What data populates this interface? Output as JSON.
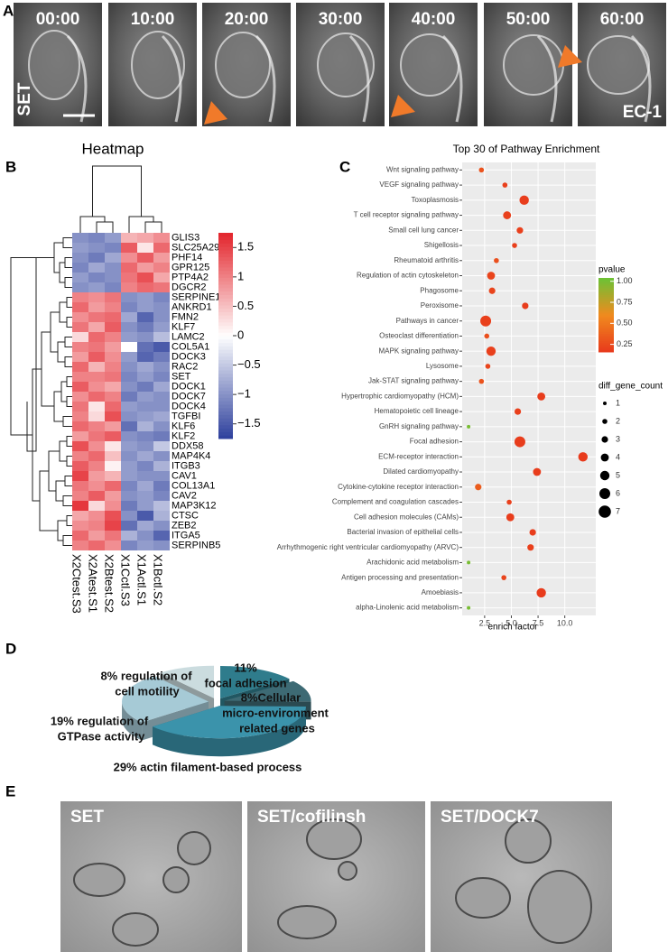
{
  "panel_a": {
    "label": "A",
    "frames": [
      "00:00",
      "10:00",
      "20:00",
      "30:00",
      "40:00",
      "50:00",
      "60:00"
    ],
    "cell_line_left": "SET",
    "cell_line_right": "EC-1"
  },
  "panel_b": {
    "label": "B",
    "title": "Heatmap",
    "samples": [
      "X2Ctest.S3",
      "X2Atest.S1",
      "X2Btest.S2",
      "X1Cctl.S3",
      "X1Actl.S1",
      "X1Bctl.S2"
    ],
    "genes": [
      "GLIS3",
      "SLC25A29",
      "PHF14",
      "GPR125",
      "PTP4A2",
      "DGCR2",
      "SERPINE1",
      "ANKRD1",
      "FMN2",
      "KLF7",
      "LAMC2",
      "COL5A1",
      "DOCK3",
      "RAC2",
      "SET",
      "DOCK1",
      "DOCK7",
      "DOCK4",
      "TGFBI",
      "KLF6",
      "KLF2",
      "DDX58",
      "MAP4K4",
      "ITGB3",
      "CAV1",
      "COL13A1",
      "CAV2",
      "MAP3K12",
      "CTSC",
      "ZEB2",
      "ITGA5",
      "SERPINB5"
    ],
    "values": [
      [
        -1,
        -1.1,
        -0.9,
        0.6,
        0.7,
        0.9
      ],
      [
        -0.9,
        -1,
        -1.1,
        1.3,
        0.2,
        1.2
      ],
      [
        -1,
        -1.2,
        -0.8,
        0.9,
        1.3,
        0.8
      ],
      [
        -1.1,
        -0.8,
        -1,
        1.2,
        0.8,
        1
      ],
      [
        -0.9,
        -1.1,
        -1,
        1.1,
        1.4,
        0.7
      ],
      [
        -1,
        -0.9,
        -1.1,
        1,
        1.2,
        1.1
      ],
      [
        1,
        0.9,
        1.1,
        -1,
        -0.9,
        -1.1
      ],
      [
        1.2,
        0.8,
        1,
        -1.1,
        -0.9,
        -1
      ],
      [
        0.9,
        1.1,
        1.2,
        -0.8,
        -1.4,
        -1
      ],
      [
        1.1,
        0.7,
        1.3,
        -1,
        -1.2,
        -0.9
      ],
      [
        0.3,
        1.2,
        1,
        -0.9,
        -1,
        -0.6
      ],
      [
        1,
        1.1,
        0.8,
        0,
        -1.3,
        -1.5
      ],
      [
        0.8,
        1.3,
        0.9,
        -0.9,
        -1.4,
        -1.2
      ],
      [
        1.2,
        0.6,
        1,
        -1,
        -0.8,
        -1
      ],
      [
        1,
        1,
        1.1,
        -1.1,
        -0.9,
        -1.1
      ],
      [
        1.3,
        0.9,
        0.7,
        -1,
        -1.2,
        -0.8
      ],
      [
        0.9,
        1.2,
        1,
        -1.2,
        -0.9,
        -1
      ],
      [
        1.1,
        0.2,
        1.2,
        -0.9,
        -1,
        -1
      ],
      [
        1,
        0.3,
        1.4,
        -1,
        -0.9,
        -0.8
      ],
      [
        1.2,
        1,
        0.8,
        -1.3,
        -0.7,
        -1
      ],
      [
        0.8,
        1.1,
        1.3,
        -1,
        -1.1,
        -1.2
      ],
      [
        1.4,
        0.9,
        0.2,
        -0.9,
        -1,
        -0.5
      ],
      [
        1,
        1.2,
        0.5,
        -1,
        -0.8,
        -1
      ],
      [
        1.3,
        1,
        0.1,
        -0.9,
        -1.1,
        -0.7
      ],
      [
        1.5,
        0.8,
        0.6,
        -0.9,
        -1,
        -1
      ],
      [
        1.1,
        0.9,
        1.2,
        -1.1,
        -0.8,
        -1.2
      ],
      [
        1,
        1.3,
        0.8,
        -1,
        -0.9,
        -1.1
      ],
      [
        1.6,
        0.3,
        0.9,
        -1.2,
        -0.9,
        -0.6
      ],
      [
        0.7,
        0.9,
        1.4,
        -1,
        -1.5,
        -0.7
      ],
      [
        0.9,
        1,
        1.5,
        -1.3,
        -0.8,
        -1
      ],
      [
        1.2,
        0.8,
        1.1,
        -0.7,
        -1,
        -1.4
      ],
      [
        1,
        1.2,
        0.9,
        -1.1,
        -0.9,
        -1
      ]
    ],
    "scale_lim": [
      -1.75,
      1.75
    ],
    "scale_ticks": [
      1.5,
      1,
      0.5,
      0,
      {
        "value": -0.5,
        "label": "−0.5"
      },
      {
        "value": -1,
        "label": "−1"
      },
      {
        "value": -1.5,
        "label": "−1.5"
      }
    ],
    "colors": {
      "low": "#2c3f9c",
      "mid": "#ffffff",
      "high": "#e3242b"
    }
  },
  "panel_c": {
    "label": "C",
    "type": "scatter",
    "title": "Top 30 of Pathway Enrichment",
    "x_label": "enrich factor",
    "xlim": [
      0.4,
      12.9
    ],
    "xticks": [
      2.5,
      {
        "value": 5,
        "label": "5.0"
      },
      7.5,
      {
        "value": 10,
        "label": "10.0"
      }
    ],
    "grid": true,
    "pathways": [
      {
        "name": "Wnt signaling pathway",
        "enrich_factor": 2.2,
        "pvalue": 0.3,
        "gene_count": 2
      },
      {
        "name": "VEGF signaling pathway",
        "enrich_factor": 4.4,
        "pvalue": 0.2,
        "gene_count": 2
      },
      {
        "name": "Toxoplasmosis",
        "enrich_factor": 6.2,
        "pvalue": 0.18,
        "gene_count": 5
      },
      {
        "name": "T cell receptor signaling pathway",
        "enrich_factor": 4.6,
        "pvalue": 0.2,
        "gene_count": 4
      },
      {
        "name": "Small cell lung cancer",
        "enrich_factor": 5.8,
        "pvalue": 0.2,
        "gene_count": 3
      },
      {
        "name": "Shigellosis",
        "enrich_factor": 5.3,
        "pvalue": 0.2,
        "gene_count": 2
      },
      {
        "name": "Rheumatoid arthritis",
        "enrich_factor": 3.6,
        "pvalue": 0.28,
        "gene_count": 2
      },
      {
        "name": "Regulation of actin cytoskeleton",
        "enrich_factor": 3.1,
        "pvalue": 0.22,
        "gene_count": 4
      },
      {
        "name": "Phagosome",
        "enrich_factor": 3.2,
        "pvalue": 0.22,
        "gene_count": 3
      },
      {
        "name": "Peroxisome",
        "enrich_factor": 6.3,
        "pvalue": 0.18,
        "gene_count": 3
      },
      {
        "name": "Pathways in cancer",
        "enrich_factor": 2.6,
        "pvalue": 0.2,
        "gene_count": 6
      },
      {
        "name": "Osteoclast differentiation",
        "enrich_factor": 2.7,
        "pvalue": 0.28,
        "gene_count": 2
      },
      {
        "name": "MAPK signaling pathway",
        "enrich_factor": 3.1,
        "pvalue": 0.2,
        "gene_count": 5
      },
      {
        "name": "Lysosome",
        "enrich_factor": 2.8,
        "pvalue": 0.22,
        "gene_count": 2
      },
      {
        "name": "Jak-STAT signaling pathway",
        "enrich_factor": 2.2,
        "pvalue": 0.3,
        "gene_count": 2
      },
      {
        "name": "Hypertrophic cardiomyopathy (HCM)",
        "enrich_factor": 7.8,
        "pvalue": 0.18,
        "gene_count": 4
      },
      {
        "name": "Hematopoietic cell lineage",
        "enrich_factor": 5.6,
        "pvalue": 0.2,
        "gene_count": 3
      },
      {
        "name": "GnRH signaling pathway",
        "enrich_factor": 1.0,
        "pvalue": 1.0,
        "gene_count": 1
      },
      {
        "name": "Focal adhesion",
        "enrich_factor": 5.8,
        "pvalue": 0.18,
        "gene_count": 6
      },
      {
        "name": "ECM-receptor interaction",
        "enrich_factor": 11.7,
        "pvalue": 0.17,
        "gene_count": 5
      },
      {
        "name": "Dilated cardiomyopathy",
        "enrich_factor": 7.4,
        "pvalue": 0.18,
        "gene_count": 4
      },
      {
        "name": "Cytokine-cytokine receptor interaction",
        "enrich_factor": 1.9,
        "pvalue": 0.35,
        "gene_count": 3
      },
      {
        "name": "Complement and coagulation cascades",
        "enrich_factor": 4.8,
        "pvalue": 0.2,
        "gene_count": 2
      },
      {
        "name": "Cell adhesion molecules (CAMs)",
        "enrich_factor": 4.9,
        "pvalue": 0.18,
        "gene_count": 4
      },
      {
        "name": "Bacterial invasion of epithelial cells",
        "enrich_factor": 7.0,
        "pvalue": 0.18,
        "gene_count": 3
      },
      {
        "name": "Arrhythmogenic right ventricular cardiomyopathy (ARVC)",
        "enrich_factor": 6.8,
        "pvalue": 0.2,
        "gene_count": 3
      },
      {
        "name": "Arachidonic acid metabolism",
        "enrich_factor": 1.0,
        "pvalue": 1.0,
        "gene_count": 1
      },
      {
        "name": "Antigen processing and presentation",
        "enrich_factor": 4.3,
        "pvalue": 0.22,
        "gene_count": 2
      },
      {
        "name": "Amoebiasis",
        "enrich_factor": 7.8,
        "pvalue": 0.17,
        "gene_count": 5
      },
      {
        "name": "alpha-Linolenic acid metabolism",
        "enrich_factor": 1.0,
        "pvalue": 1.0,
        "gene_count": 1
      }
    ],
    "pvalue_title": "pvalue",
    "pvalue_lim": [
      0.16,
      1.04
    ],
    "pvalue_ticks": [
      {
        "value": 1,
        "label": "1.00"
      },
      0.75,
      {
        "value": 0.5,
        "label": "0.50"
      },
      0.25
    ],
    "pvalue_colors": [
      "#e8391c",
      "#f08a1e",
      "#6cc235"
    ],
    "count_title": "diff_gene_count",
    "count_ticks": [
      1,
      2,
      3,
      4,
      5,
      6,
      7
    ]
  },
  "panel_d": {
    "label": "D",
    "type": "pie",
    "slices": [
      {
        "value": 11,
        "label_lines": [
          "11%",
          "focal adhesion"
        ],
        "color": "#2f7c8c"
      },
      {
        "value": 8,
        "label_lines": [
          "8%Cellular",
          "micro-environment",
          "related genes"
        ],
        "color": "#3d6a74"
      },
      {
        "value": 29,
        "label_lines": [
          "29% actin filament-based process"
        ],
        "color": "#3b93ab"
      },
      {
        "value": 19,
        "label_lines": [
          "19% regulation of",
          "GTPase activity"
        ],
        "color": "#a6cad6"
      },
      {
        "value": 8,
        "label_lines": [
          "8% regulation of",
          "cell motility"
        ],
        "color": "#cbdcdf"
      }
    ]
  },
  "panel_e": {
    "label": "E",
    "conditions": [
      "SET",
      "SET/cofilinsh",
      "SET/DOCK7"
    ]
  }
}
